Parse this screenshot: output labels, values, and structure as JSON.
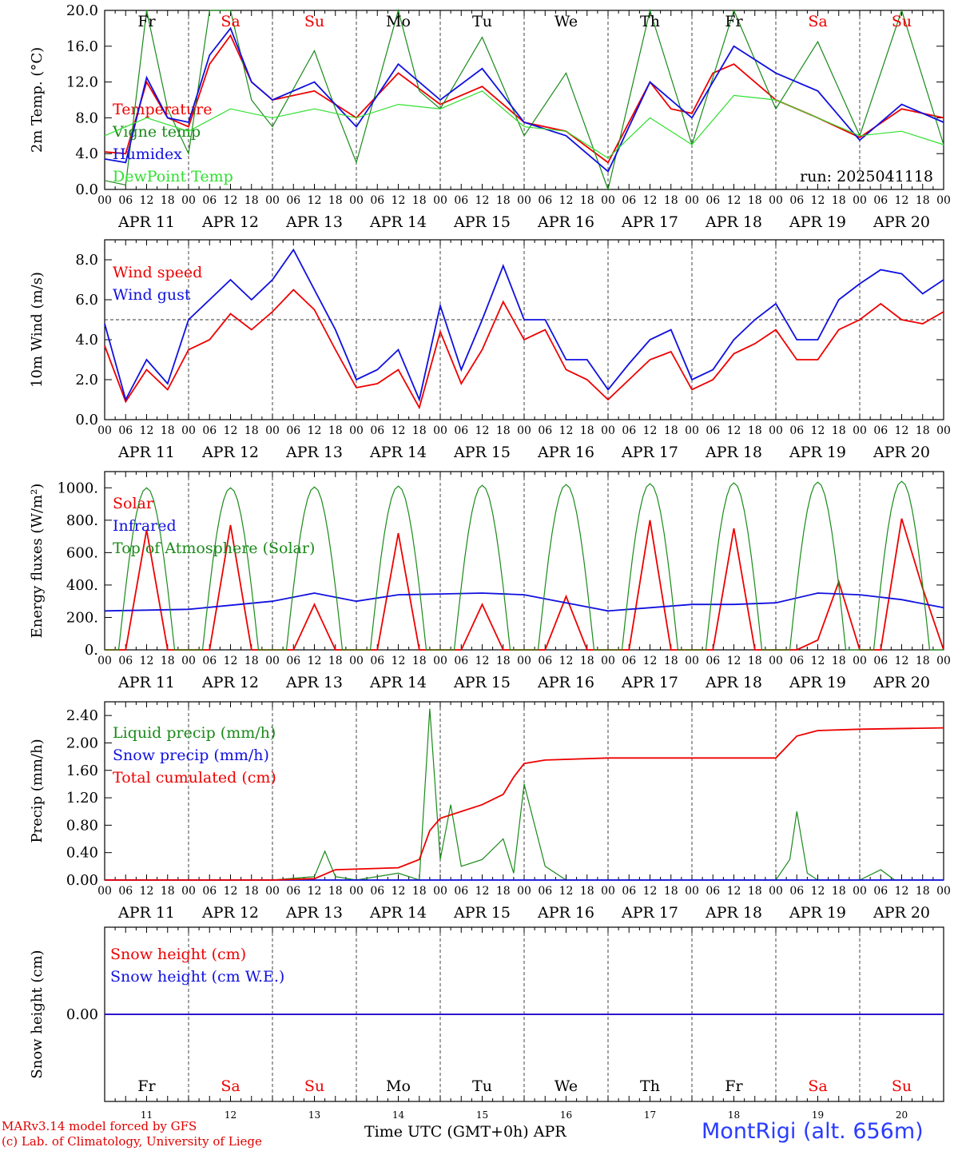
{
  "colors": {
    "red": "#ee0000",
    "green": "#1a8a1a",
    "blue": "#1010e0",
    "light_green": "#30e030",
    "weekend": "#ee0000",
    "weekday": "#000000",
    "station": "#2a3cff"
  },
  "days": [
    {
      "abbr": "Fr",
      "date": "APR 11",
      "num": "11",
      "weekend": false
    },
    {
      "abbr": "Sa",
      "date": "APR 12",
      "num": "12",
      "weekend": true
    },
    {
      "abbr": "Su",
      "date": "APR 13",
      "num": "13",
      "weekend": true
    },
    {
      "abbr": "Mo",
      "date": "APR 14",
      "num": "14",
      "weekend": false
    },
    {
      "abbr": "Tu",
      "date": "APR 15",
      "num": "15",
      "weekend": false
    },
    {
      "abbr": "We",
      "date": "APR 16",
      "num": "16",
      "weekend": false
    },
    {
      "abbr": "Th",
      "date": "APR 17",
      "num": "17",
      "weekend": false
    },
    {
      "abbr": "Fr",
      "date": "APR 18",
      "num": "18",
      "weekend": false
    },
    {
      "abbr": "Sa",
      "date": "APR 19",
      "num": "19",
      "weekend": true
    },
    {
      "abbr": "Su",
      "date": "APR 20",
      "num": "20",
      "weekend": true
    }
  ],
  "hour_labels": [
    "00",
    "06",
    "12",
    "18"
  ],
  "footer": {
    "credit_line1": "MARv3.14 model forced by GFS",
    "credit_line2": "(c) Lab. of Climatology, University of Liege",
    "xaxis_title": "Time UTC (GMT+0h) APR",
    "station": "MontRigi (alt. 656m)"
  },
  "chart_data": [
    {
      "type": "line",
      "ylabel": "2m Temp. (°C)",
      "ylim": [
        0,
        20
      ],
      "yticks": [
        "0.0",
        "4.0",
        "8.0",
        "12.0",
        "16.0",
        "20.0"
      ],
      "annotation": "run: 2025041118",
      "x_unit": "hours since APR 11 00 UTC",
      "series": [
        {
          "name": "Temperature",
          "color": "red",
          "x": [
            0,
            6,
            12,
            18,
            24,
            30,
            36,
            42,
            48,
            60,
            72,
            84,
            96,
            108,
            120,
            132,
            144,
            156,
            162,
            168,
            174,
            180,
            192,
            204,
            216,
            228,
            240
          ],
          "y": [
            4.2,
            4.0,
            12.0,
            8.0,
            7.0,
            14.0,
            17.2,
            12.0,
            10.0,
            11.0,
            8.0,
            13.0,
            9.5,
            11.5,
            7.5,
            6.5,
            3.0,
            12.0,
            9.0,
            8.5,
            13.0,
            14.0,
            10.0,
            8.0,
            5.8,
            9.0,
            8.0
          ]
        },
        {
          "name": "Vigne temp",
          "color": "green",
          "x": [
            0,
            6,
            12,
            18,
            24,
            30,
            36,
            42,
            48,
            60,
            66,
            72,
            84,
            90,
            96,
            108,
            120,
            132,
            144,
            156,
            168,
            180,
            192,
            204,
            216,
            228,
            240
          ],
          "y": [
            1.0,
            0.5,
            20.0,
            9.0,
            4.0,
            20.0,
            20.0,
            10.0,
            7.0,
            15.5,
            9.0,
            3.0,
            20.0,
            11.0,
            9.0,
            17.0,
            6.0,
            13.0,
            0.0,
            20.0,
            5.0,
            20.0,
            9.0,
            16.5,
            6.0,
            20.0,
            5.0
          ]
        },
        {
          "name": "Humidex",
          "color": "blue",
          "x": [
            0,
            6,
            12,
            18,
            24,
            30,
            36,
            42,
            48,
            60,
            72,
            84,
            96,
            108,
            120,
            132,
            144,
            156,
            168,
            180,
            192,
            204,
            216,
            228,
            240
          ],
          "y": [
            3.4,
            3.0,
            12.5,
            8.0,
            7.5,
            15.0,
            18.0,
            12.0,
            10.0,
            12.0,
            7.0,
            14.0,
            10.0,
            13.5,
            7.5,
            6.0,
            2.0,
            12.0,
            8.0,
            16.0,
            13.0,
            11.0,
            5.5,
            9.5,
            7.5
          ]
        },
        {
          "name": "DewPoint Temp",
          "color": "light_green",
          "x": [
            0,
            12,
            24,
            36,
            48,
            60,
            72,
            84,
            96,
            108,
            120,
            132,
            144,
            156,
            168,
            180,
            192,
            204,
            216,
            228,
            240
          ],
          "y": [
            6.0,
            8.0,
            6.5,
            9.0,
            8.0,
            9.0,
            8.0,
            9.5,
            9.0,
            11.0,
            7.0,
            6.5,
            3.5,
            8.0,
            5.0,
            10.5,
            10.0,
            8.0,
            6.0,
            6.5,
            5.0
          ]
        }
      ]
    },
    {
      "type": "line",
      "ylabel": "10m Wind (m/s)",
      "ylim": [
        0,
        9
      ],
      "yticks": [
        "0.0",
        "2.0",
        "4.0",
        "6.0",
        "8.0"
      ],
      "reference_line": 5,
      "series": [
        {
          "name": "Wind speed",
          "color": "red",
          "x": [
            0,
            6,
            12,
            18,
            24,
            30,
            36,
            42,
            48,
            54,
            60,
            66,
            72,
            78,
            84,
            90,
            96,
            102,
            108,
            114,
            120,
            126,
            132,
            138,
            144,
            150,
            156,
            162,
            168,
            174,
            180,
            186,
            192,
            198,
            204,
            210,
            216,
            222,
            228,
            234,
            240
          ],
          "y": [
            3.7,
            0.9,
            2.5,
            1.5,
            3.5,
            4.0,
            5.3,
            4.5,
            5.4,
            6.5,
            5.5,
            3.5,
            1.6,
            1.8,
            2.5,
            0.6,
            4.4,
            1.8,
            3.5,
            5.9,
            4.0,
            4.5,
            2.5,
            2.0,
            1.0,
            2.0,
            3.0,
            3.4,
            1.5,
            2.0,
            3.3,
            3.8,
            4.5,
            3.0,
            3.0,
            4.5,
            5.0,
            5.8,
            5.0,
            4.8,
            5.4
          ]
        },
        {
          "name": "Wind gust",
          "color": "blue",
          "x": [
            0,
            6,
            12,
            18,
            24,
            30,
            36,
            42,
            48,
            54,
            60,
            66,
            72,
            78,
            84,
            90,
            96,
            102,
            108,
            114,
            120,
            126,
            132,
            138,
            144,
            150,
            156,
            162,
            168,
            174,
            180,
            186,
            192,
            198,
            204,
            210,
            216,
            222,
            228,
            234,
            240
          ],
          "y": [
            4.8,
            1.0,
            3.0,
            1.8,
            5.0,
            6.0,
            7.0,
            6.0,
            7.0,
            8.5,
            6.5,
            4.5,
            2.0,
            2.5,
            3.5,
            1.0,
            5.7,
            2.5,
            5.0,
            7.7,
            5.0,
            5.0,
            3.0,
            3.0,
            1.5,
            2.8,
            4.0,
            4.5,
            2.0,
            2.5,
            4.0,
            5.0,
            5.8,
            4.0,
            4.0,
            6.0,
            6.8,
            7.5,
            7.3,
            6.3,
            7.0
          ]
        }
      ]
    },
    {
      "type": "line",
      "ylabel": "Energy fluxes (W/m²)",
      "ylim": [
        0,
        1100
      ],
      "yticks": [
        "0.",
        "200.",
        "400.",
        "600.",
        "800.",
        "1000."
      ],
      "series": [
        {
          "name": "Solar",
          "color": "red",
          "x": [
            0,
            6,
            12,
            18,
            24,
            30,
            36,
            42,
            48,
            54,
            60,
            66,
            72,
            78,
            84,
            90,
            96,
            102,
            108,
            114,
            120,
            126,
            132,
            138,
            144,
            150,
            156,
            162,
            168,
            174,
            180,
            186,
            192,
            198,
            204,
            210,
            216,
            222,
            228,
            234,
            240
          ],
          "y": [
            0,
            0,
            740,
            0,
            0,
            0,
            770,
            0,
            0,
            0,
            280,
            0,
            0,
            0,
            720,
            0,
            0,
            0,
            280,
            0,
            0,
            0,
            330,
            0,
            0,
            0,
            800,
            0,
            0,
            0,
            750,
            0,
            0,
            0,
            60,
            420,
            0,
            0,
            810,
            380,
            0
          ]
        },
        {
          "name": "Infrared",
          "color": "blue",
          "x": [
            0,
            24,
            48,
            60,
            72,
            84,
            96,
            108,
            120,
            144,
            156,
            168,
            180,
            192,
            204,
            216,
            228,
            240
          ],
          "y": [
            240,
            250,
            300,
            350,
            300,
            340,
            345,
            350,
            340,
            240,
            260,
            280,
            280,
            290,
            350,
            340,
            310,
            260
          ]
        },
        {
          "name": "Top of Atmosphere (Solar)",
          "color": "green",
          "peaks": [
            1000,
            1000,
            1005,
            1010,
            1015,
            1020,
            1025,
            1030,
            1035,
            1040
          ]
        }
      ]
    },
    {
      "type": "line",
      "ylabel": "Precip (mm/h)",
      "ylim": [
        0,
        2.6
      ],
      "yticks": [
        "0.00",
        "0.40",
        "0.80",
        "1.20",
        "1.60",
        "2.00",
        "2.40"
      ],
      "series": [
        {
          "name": "Liquid precip (mm/h)",
          "color": "green",
          "x": [
            0,
            24,
            48,
            60,
            63,
            66,
            72,
            84,
            90,
            93,
            96,
            99,
            102,
            108,
            114,
            117,
            120,
            126,
            132,
            144,
            180,
            192,
            196,
            198,
            201,
            204,
            216,
            222,
            226,
            240
          ],
          "y": [
            0,
            0,
            0,
            0.05,
            0.42,
            0.05,
            0,
            0.1,
            0,
            2.5,
            0.3,
            1.1,
            0.2,
            0.3,
            0.6,
            0.1,
            1.4,
            0.2,
            0,
            0,
            0,
            0,
            0.3,
            1.0,
            0.1,
            0,
            0,
            0.15,
            0,
            0
          ]
        },
        {
          "name": "Snow precip (mm/h)",
          "color": "blue",
          "x": [
            0,
            240
          ],
          "y": [
            0,
            0
          ]
        },
        {
          "name": "Total cumulated (cm)",
          "color": "red",
          "x": [
            0,
            48,
            60,
            66,
            84,
            90,
            93,
            96,
            108,
            114,
            117,
            120,
            126,
            144,
            168,
            192,
            198,
            204,
            216,
            240
          ],
          "y": [
            0,
            0,
            0.02,
            0.15,
            0.18,
            0.3,
            0.72,
            0.9,
            1.1,
            1.25,
            1.5,
            1.7,
            1.75,
            1.78,
            1.78,
            1.78,
            2.1,
            2.18,
            2.2,
            2.22
          ]
        }
      ]
    },
    {
      "type": "line",
      "ylabel": "Snow height (cm)",
      "ylim": [
        -1,
        1
      ],
      "yticks": [
        "0.00"
      ],
      "series": [
        {
          "name": "Snow height (cm)",
          "color": "red",
          "x": [
            0,
            240
          ],
          "y": [
            0,
            0
          ]
        },
        {
          "name": "Snow height (cm W.E.)",
          "color": "blue",
          "x": [
            0,
            240
          ],
          "y": [
            0,
            0
          ]
        }
      ]
    }
  ]
}
